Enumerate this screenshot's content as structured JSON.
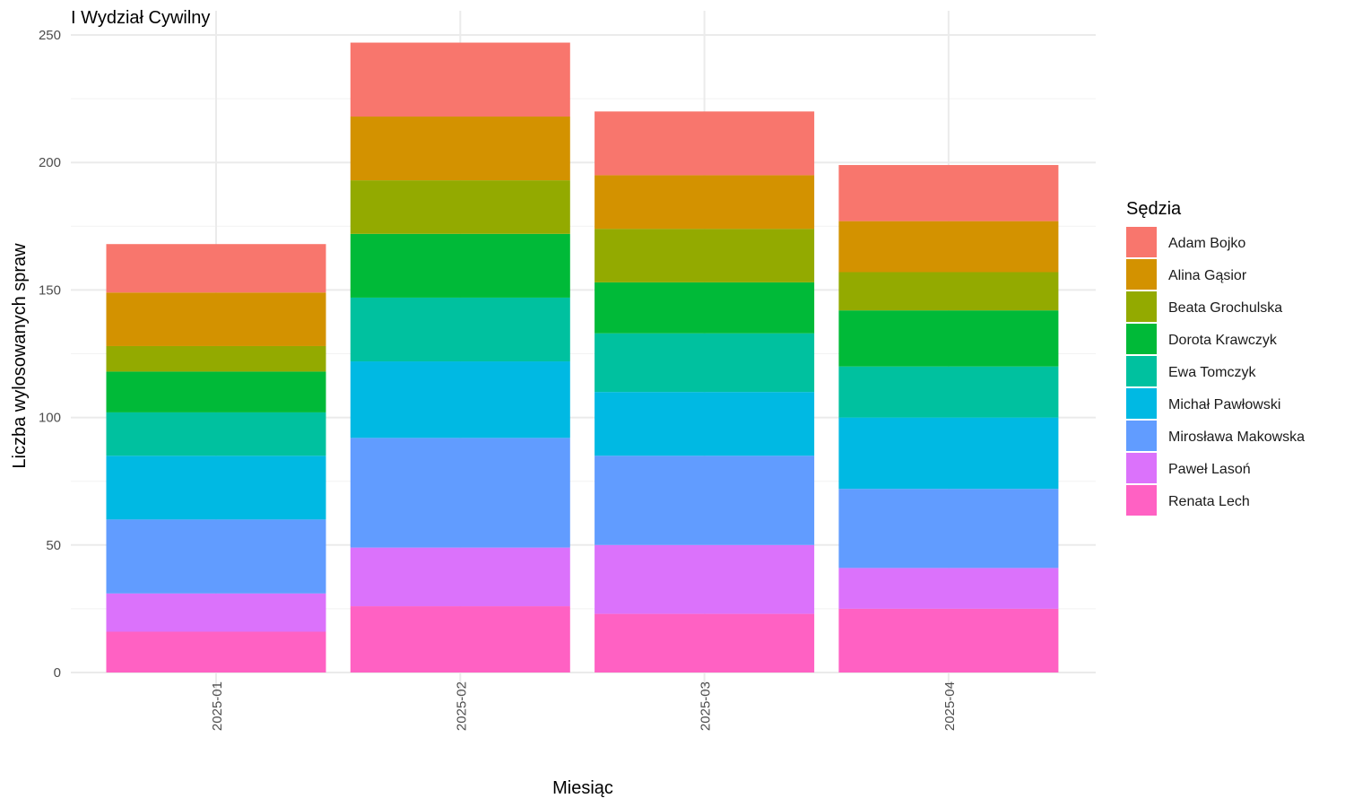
{
  "chart_data": {
    "type": "bar",
    "stacked": true,
    "title": "I Wydział Cywilny",
    "xlabel": "Miesiąc",
    "ylabel": "Liczba wylosowanych spraw",
    "ylim": [
      0,
      250
    ],
    "yticks": [
      0,
      50,
      100,
      150,
      200,
      250
    ],
    "grid": true,
    "legend_title": "Sędzia",
    "legend_position": "right",
    "categories": [
      "2025-01",
      "2025-02",
      "2025-03",
      "2025-04"
    ],
    "series": [
      {
        "name": "Renata Lech",
        "color": "#FF61C3",
        "values": [
          16,
          26,
          23,
          25
        ]
      },
      {
        "name": "Paweł Lasoń",
        "color": "#DB72FB",
        "values": [
          15,
          23,
          27,
          16
        ]
      },
      {
        "name": "Mirosława Makowska",
        "color": "#619CFF",
        "values": [
          29,
          43,
          35,
          31
        ]
      },
      {
        "name": "Michał Pawłowski",
        "color": "#00B9E3",
        "values": [
          25,
          30,
          25,
          28
        ]
      },
      {
        "name": "Ewa Tomczyk",
        "color": "#00C19F",
        "values": [
          17,
          25,
          23,
          20
        ]
      },
      {
        "name": "Dorota Krawczyk",
        "color": "#00BA38",
        "values": [
          16,
          25,
          20,
          22
        ]
      },
      {
        "name": "Beata Grochulska",
        "color": "#93AA00",
        "values": [
          10,
          21,
          21,
          15
        ]
      },
      {
        "name": "Alina Gąsior",
        "color": "#D39200",
        "values": [
          21,
          25,
          21,
          20
        ]
      },
      {
        "name": "Adam Bojko",
        "color": "#F8766D",
        "values": [
          19,
          29,
          25,
          22
        ]
      }
    ],
    "legend_order": [
      "Adam Bojko",
      "Alina Gąsior",
      "Beata Grochulska",
      "Dorota Krawczyk",
      "Ewa Tomczyk",
      "Michał Pawłowski",
      "Mirosława Makowska",
      "Paweł Lasoń",
      "Renata Lech"
    ]
  }
}
